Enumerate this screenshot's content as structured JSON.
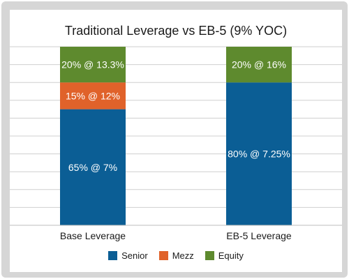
{
  "chart_data": {
    "type": "bar",
    "stacked": true,
    "title": "Traditional Leverage vs EB-5 (9% YOC)",
    "categories": [
      "Base Leverage",
      "EB-5 Leverage"
    ],
    "ylim": [
      0,
      100
    ],
    "grid": true,
    "legend_position": "bottom",
    "series": [
      {
        "name": "Senior",
        "color": "#0b5e95",
        "values": [
          65,
          80
        ],
        "labels": [
          "65% @ 7%",
          "80% @ 7.25%"
        ]
      },
      {
        "name": "Mezz",
        "color": "#e0622a",
        "values": [
          15,
          0
        ],
        "labels": [
          "15% @ 12%",
          ""
        ]
      },
      {
        "name": "Equity",
        "color": "#5e8a2e",
        "values": [
          20,
          20
        ],
        "labels": [
          "20% @ 13.3%",
          "20% @ 16%"
        ]
      }
    ]
  }
}
